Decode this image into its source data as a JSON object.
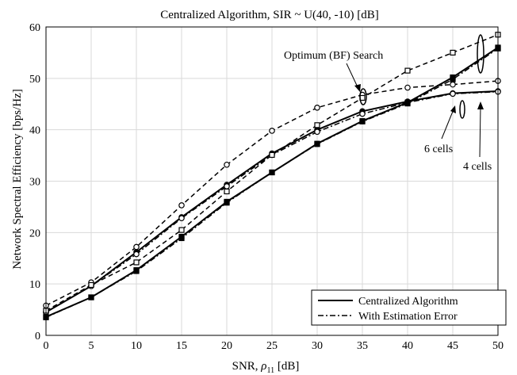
{
  "chart_data": {
    "type": "line",
    "title": "Centralized Algorithm, SIR ~ U(40, -10) [dB]",
    "xlabel_main": "SNR, ",
    "xlabel_rho": "ρ",
    "xlabel_sub": "11",
    "xlabel_unit": " [dB]",
    "ylabel": "Network Spectral Efficiency [bps/Hz]",
    "xlim": [
      0,
      50
    ],
    "ylim": [
      0,
      60
    ],
    "xticks": [
      0,
      5,
      10,
      15,
      20,
      25,
      30,
      35,
      40,
      45,
      50
    ],
    "yticks": [
      0,
      10,
      20,
      30,
      40,
      50,
      60
    ],
    "grid": true,
    "legend_position": "bottom-right",
    "legend": [
      {
        "label": "Centralized Algorithm",
        "style": "solid"
      },
      {
        "label": "With Estimation Error",
        "style": "dashdot"
      }
    ],
    "x": [
      0,
      5,
      10,
      15,
      20,
      25,
      30,
      35,
      40,
      45,
      50
    ],
    "series": [
      {
        "style": "dashed",
        "marker": "circle",
        "values": [
          5.8,
          10.3,
          17.2,
          25.3,
          33.2,
          39.8,
          44.3,
          46.8,
          48.2,
          48.8,
          49.5
        ]
      },
      {
        "style": "solid",
        "marker": "circle",
        "values": [
          4.5,
          9.6,
          16.2,
          23.0,
          29.3,
          35.4,
          40.0,
          43.6,
          45.5,
          47.1,
          47.5
        ]
      },
      {
        "style": "dashdot",
        "marker": "circle",
        "values": [
          4.5,
          9.6,
          15.8,
          22.8,
          29.0,
          35.1,
          39.6,
          43.1,
          45.3,
          47.0,
          47.4
        ]
      },
      {
        "style": "dashed",
        "marker": "square",
        "values": [
          4.8,
          9.8,
          14.2,
          20.5,
          28.0,
          35.1,
          40.9,
          46.2,
          51.5,
          55.0,
          58.5
        ]
      },
      {
        "style": "solid",
        "marker": "square",
        "values": [
          3.6,
          7.4,
          12.7,
          19.2,
          26.0,
          31.7,
          37.3,
          41.7,
          45.3,
          50.2,
          56.0
        ]
      },
      {
        "style": "dashdot",
        "marker": "square",
        "values": [
          3.5,
          7.4,
          12.5,
          18.9,
          25.8,
          31.7,
          37.2,
          41.6,
          45.1,
          49.8,
          55.8
        ]
      }
    ],
    "annotations": {
      "bf": "Optimum (BF) Search",
      "six": "6 cells",
      "four": "4 cells"
    }
  }
}
